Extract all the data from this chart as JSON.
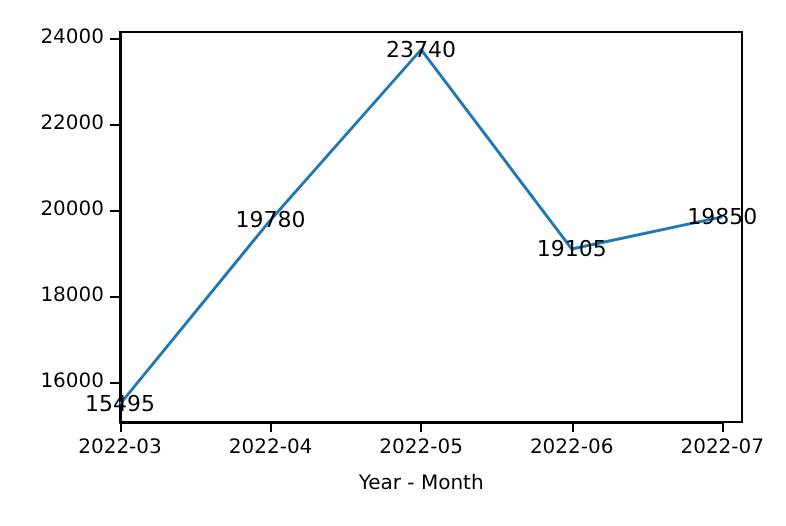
{
  "chart_data": {
    "type": "line",
    "xlabel": "Year - Month",
    "categories": [
      "2022-03",
      "2022-04",
      "2022-05",
      "2022-06",
      "2022-07"
    ],
    "series": [
      {
        "color": "#1f77b4",
        "values": [
          15495,
          19780,
          23740,
          19105,
          19850
        ]
      }
    ],
    "ylim": [
      15080,
      24150
    ],
    "yticks": [
      16000,
      18000,
      20000,
      22000,
      24000
    ],
    "data_labels": true,
    "grid": false,
    "marker": "none",
    "line_style": "solid"
  }
}
